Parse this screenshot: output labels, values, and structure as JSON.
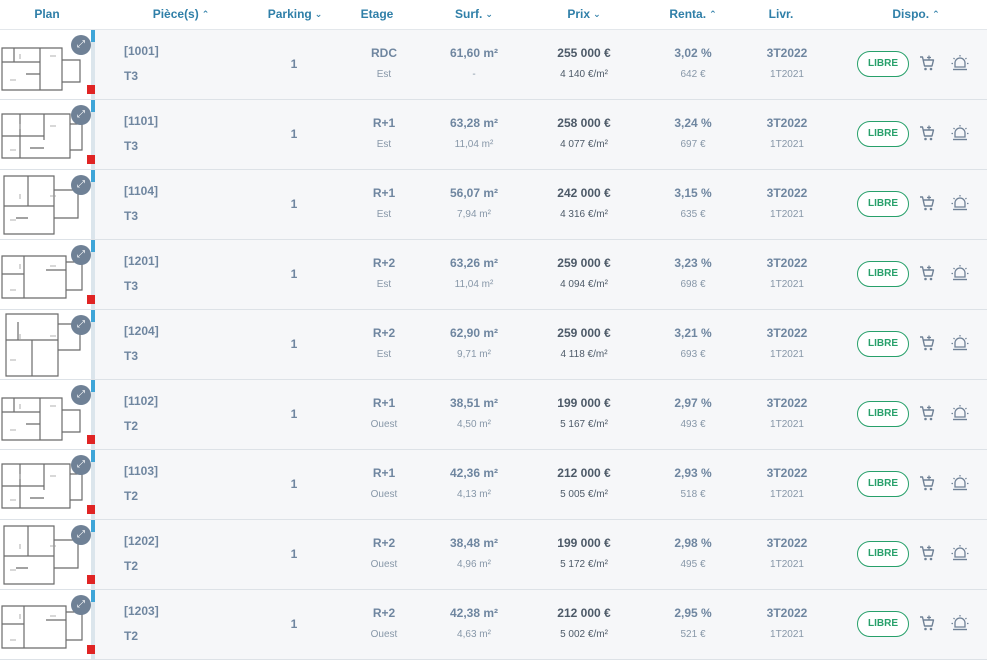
{
  "header": {
    "plan": "Plan",
    "pieces": "Pièce(s)",
    "parking": "Parking",
    "etage": "Etage",
    "surf": "Surf.",
    "prix": "Prix",
    "renta": "Renta.",
    "livr": "Livr.",
    "dispo": "Dispo."
  },
  "sort_icons": {
    "pieces": "chevron-up-icon",
    "parking": "chevron-down-icon",
    "surf": "chevron-down-icon",
    "prix": "chevron-down-icon",
    "renta": "chevron-up-icon",
    "dispo": "chevron-up-icon"
  },
  "colors": {
    "header_text": "#2f7fa8",
    "row_bg": "#f6f7f9",
    "status_green": "#27a06a",
    "plan_accent": "#3fa5d8",
    "plan_mark": "#e02424"
  },
  "lots": [
    {
      "ref": "[1001]",
      "type": "T3",
      "parking": "1",
      "etage": "RDC",
      "orientation": "Est",
      "surface": "61,60 m²",
      "surface_ext": "-",
      "prix": "255 000 €",
      "prix_m2": "4 140 €/m²",
      "renta": "3,02 %",
      "loyer": "642 €",
      "livraison": "3T2022",
      "livraison_sub": "1T2021",
      "dispo": "LIBRE",
      "red_mark": true
    },
    {
      "ref": "[1101]",
      "type": "T3",
      "parking": "1",
      "etage": "R+1",
      "orientation": "Est",
      "surface": "63,28 m²",
      "surface_ext": "11,04 m²",
      "prix": "258 000 €",
      "prix_m2": "4 077 €/m²",
      "renta": "3,24 %",
      "loyer": "697 €",
      "livraison": "3T2022",
      "livraison_sub": "1T2021",
      "dispo": "LIBRE",
      "red_mark": true
    },
    {
      "ref": "[1104]",
      "type": "T3",
      "parking": "1",
      "etage": "R+1",
      "orientation": "Est",
      "surface": "56,07 m²",
      "surface_ext": "7,94 m²",
      "prix": "242 000 €",
      "prix_m2": "4 316 €/m²",
      "renta": "3,15 %",
      "loyer": "635 €",
      "livraison": "3T2022",
      "livraison_sub": "1T2021",
      "dispo": "LIBRE",
      "red_mark": false
    },
    {
      "ref": "[1201]",
      "type": "T3",
      "parking": "1",
      "etage": "R+2",
      "orientation": "Est",
      "surface": "63,26 m²",
      "surface_ext": "11,04 m²",
      "prix": "259 000 €",
      "prix_m2": "4 094 €/m²",
      "renta": "3,23 %",
      "loyer": "698 €",
      "livraison": "3T2022",
      "livraison_sub": "1T2021",
      "dispo": "LIBRE",
      "red_mark": true
    },
    {
      "ref": "[1204]",
      "type": "T3",
      "parking": "1",
      "etage": "R+2",
      "orientation": "Est",
      "surface": "62,90 m²",
      "surface_ext": "9,71 m²",
      "prix": "259 000 €",
      "prix_m2": "4 118 €/m²",
      "renta": "3,21 %",
      "loyer": "693 €",
      "livraison": "3T2022",
      "livraison_sub": "1T2021",
      "dispo": "LIBRE",
      "red_mark": false
    },
    {
      "ref": "[1102]",
      "type": "T2",
      "parking": "1",
      "etage": "R+1",
      "orientation": "Ouest",
      "surface": "38,51 m²",
      "surface_ext": "4,50 m²",
      "prix": "199 000 €",
      "prix_m2": "5 167 €/m²",
      "renta": "2,97 %",
      "loyer": "493 €",
      "livraison": "3T2022",
      "livraison_sub": "1T2021",
      "dispo": "LIBRE",
      "red_mark": true
    },
    {
      "ref": "[1103]",
      "type": "T2",
      "parking": "1",
      "etage": "R+1",
      "orientation": "Ouest",
      "surface": "42,36 m²",
      "surface_ext": "4,13 m²",
      "prix": "212 000 €",
      "prix_m2": "5 005 €/m²",
      "renta": "2,93 %",
      "loyer": "518 €",
      "livraison": "3T2022",
      "livraison_sub": "1T2021",
      "dispo": "LIBRE",
      "red_mark": true
    },
    {
      "ref": "[1202]",
      "type": "T2",
      "parking": "1",
      "etage": "R+2",
      "orientation": "Ouest",
      "surface": "38,48 m²",
      "surface_ext": "4,96 m²",
      "prix": "199 000 €",
      "prix_m2": "5 172 €/m²",
      "renta": "2,98 %",
      "loyer": "495 €",
      "livraison": "3T2022",
      "livraison_sub": "1T2021",
      "dispo": "LIBRE",
      "red_mark": true
    },
    {
      "ref": "[1203]",
      "type": "T2",
      "parking": "1",
      "etage": "R+2",
      "orientation": "Ouest",
      "surface": "42,38 m²",
      "surface_ext": "4,63 m²",
      "prix": "212 000 €",
      "prix_m2": "5 002 €/m²",
      "renta": "2,95 %",
      "loyer": "521 €",
      "livraison": "3T2022",
      "livraison_sub": "1T2021",
      "dispo": "LIBRE",
      "red_mark": true
    }
  ]
}
